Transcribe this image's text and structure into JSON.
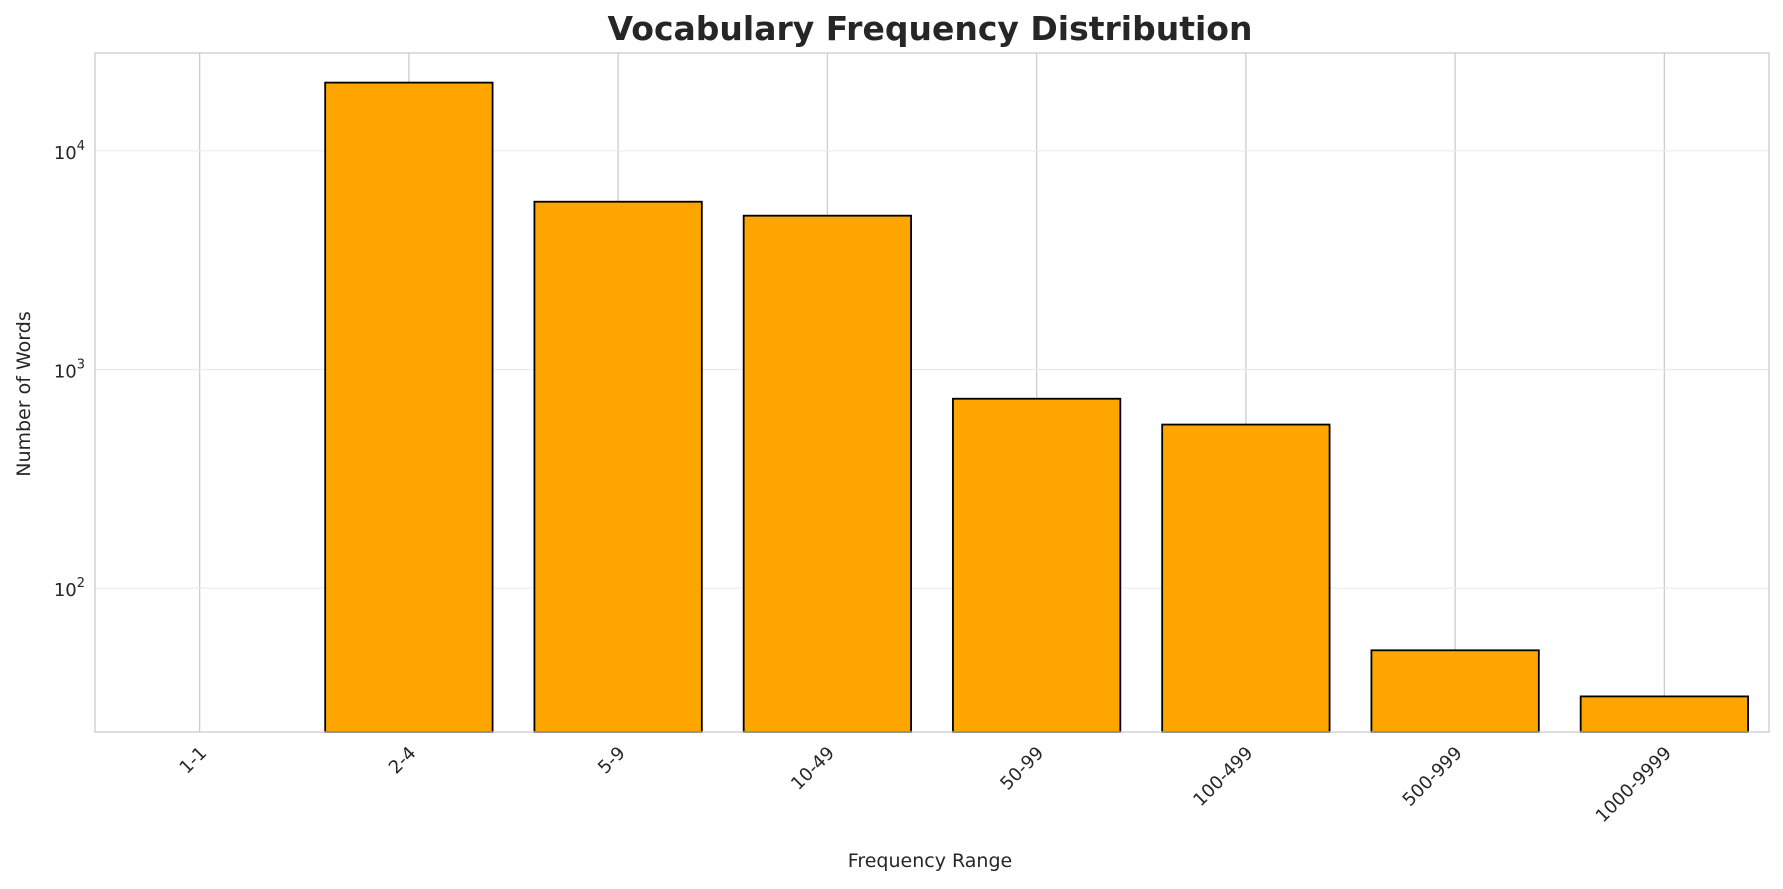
{
  "chart_data": {
    "type": "bar",
    "title": "Vocabulary Frequency Distribution",
    "xlabel": "Frequency Range",
    "ylabel": "Number of Words",
    "yscale": "log",
    "ylim": [
      22,
      28000
    ],
    "categories": [
      "1-1",
      "2-4",
      "5-9",
      "10-49",
      "50-99",
      "100-499",
      "500-999",
      "1000-9999"
    ],
    "values": [
      0,
      20500,
      5850,
      5050,
      735,
      560,
      52,
      32
    ],
    "y_ticks": [
      {
        "value": 100,
        "base": "10",
        "exp": "2"
      },
      {
        "value": 1000,
        "base": "10",
        "exp": "3"
      },
      {
        "value": 10000,
        "base": "10",
        "exp": "4"
      }
    ],
    "grid": true,
    "bar_color": "#FFA500",
    "bar_edge_color": "#000000",
    "grid_color": "#cccccc",
    "spine_color": "#cccccc"
  }
}
